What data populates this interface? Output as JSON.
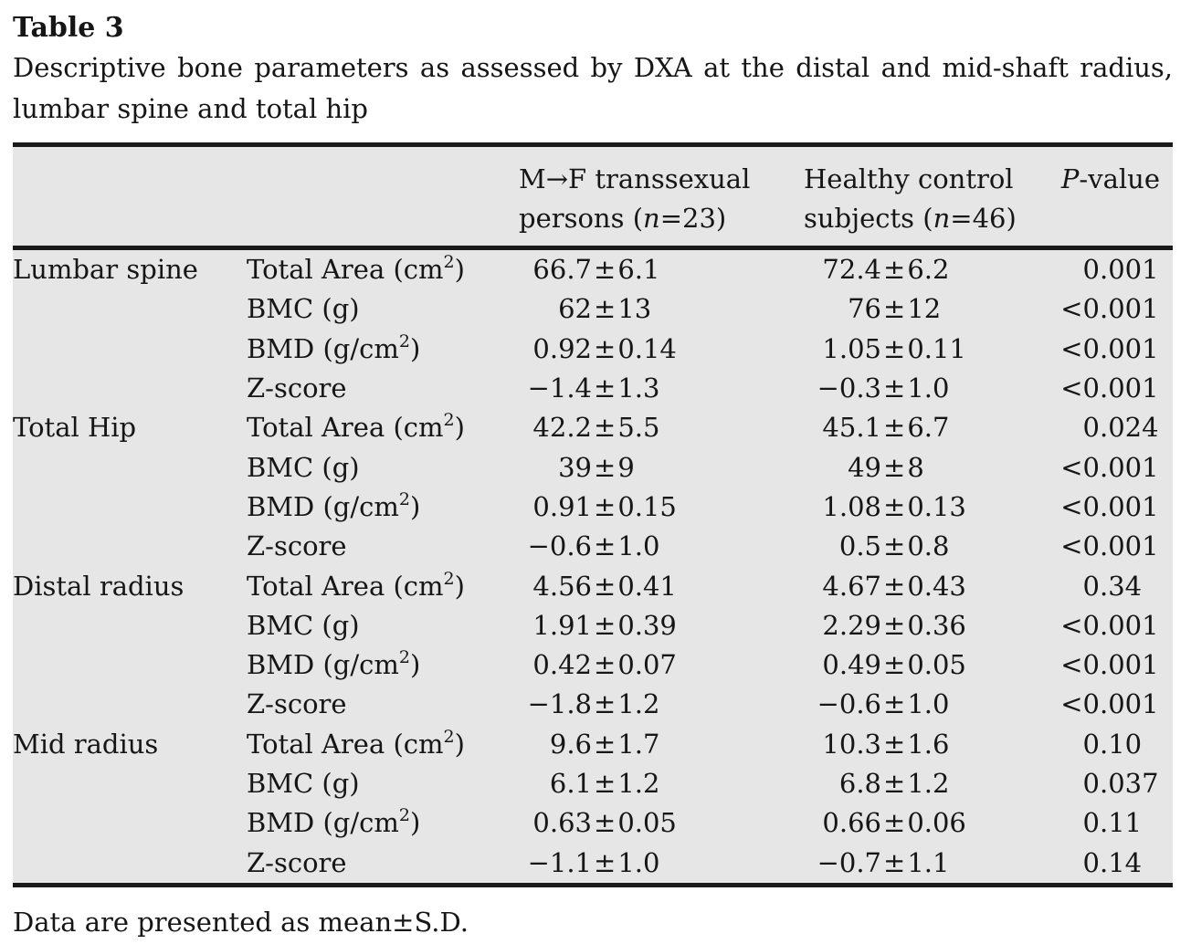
{
  "colors": {
    "page_background": "#ffffff",
    "table_background": "#e6e6e6",
    "text": "#161616",
    "rule": "#1a1a1a"
  },
  "title": "Table 3",
  "caption_line1": "Descriptive bone parameters as assessed by DXA at the distal and mid-shaft radius,",
  "caption_line2": "lumbar spine and total hip",
  "footnote": "Data are presented as mean±S.D.",
  "table": {
    "header": {
      "mf": {
        "line1": "M→F transsexual",
        "line2_pre": "persons (",
        "line2_var": "n",
        "line2_post": "=23)"
      },
      "hc": {
        "line1": "Healthy control",
        "line2_pre": "subjects (",
        "line2_var": "n",
        "line2_post": "=46)"
      },
      "p": {
        "var": "P",
        "rest": "-value"
      }
    },
    "sections": [
      {
        "site": "Lumbar spine",
        "rows": [
          {
            "param": [
              "Total Area (cm",
              "2",
              ")"
            ],
            "mf": "66.7±6.1",
            "hc": "72.4±6.2",
            "p": "0.001"
          },
          {
            "param": [
              "BMC (g)",
              "",
              ""
            ],
            "mf": "62±13",
            "hc": "76±12",
            "p": "<0.001"
          },
          {
            "param": [
              "BMD (g/cm",
              "2",
              ")"
            ],
            "mf": "0.92±0.14",
            "hc": "1.05±0.11",
            "p": "<0.001"
          },
          {
            "param": [
              "Z-score",
              "",
              ""
            ],
            "mf": "−1.4±1.3",
            "hc": "−0.3±1.0",
            "p": "<0.001"
          }
        ]
      },
      {
        "site": "Total Hip",
        "rows": [
          {
            "param": [
              "Total Area (cm",
              "2",
              ")"
            ],
            "mf": "42.2±5.5",
            "hc": "45.1±6.7",
            "p": "0.024"
          },
          {
            "param": [
              "BMC (g)",
              "",
              ""
            ],
            "mf": "39±9",
            "hc": "49±8",
            "p": "<0.001"
          },
          {
            "param": [
              "BMD (g/cm",
              "2",
              ")"
            ],
            "mf": "0.91±0.15",
            "hc": "1.08±0.13",
            "p": "<0.001"
          },
          {
            "param": [
              "Z-score",
              "",
              ""
            ],
            "mf": "−0.6±1.0",
            "hc": "0.5±0.8",
            "p": "<0.001"
          }
        ]
      },
      {
        "site": "Distal radius",
        "rows": [
          {
            "param": [
              "Total Area (cm",
              "2",
              ")"
            ],
            "mf": "4.56±0.41",
            "hc": "4.67±0.43",
            "p": "0.34"
          },
          {
            "param": [
              "BMC (g)",
              "",
              ""
            ],
            "mf": "1.91±0.39",
            "hc": "2.29±0.36",
            "p": "<0.001"
          },
          {
            "param": [
              "BMD (g/cm",
              "2",
              ")"
            ],
            "mf": "0.42±0.07",
            "hc": "0.49±0.05",
            "p": "<0.001"
          },
          {
            "param": [
              "Z-score",
              "",
              ""
            ],
            "mf": "−1.8±1.2",
            "hc": "−0.6±1.0",
            "p": "<0.001"
          }
        ]
      },
      {
        "site": "Mid radius",
        "rows": [
          {
            "param": [
              "Total Area (cm",
              "2",
              ")"
            ],
            "mf": "9.6±1.7",
            "hc": "10.3±1.6",
            "p": "0.10"
          },
          {
            "param": [
              "BMC (g)",
              "",
              ""
            ],
            "mf": "6.1±1.2",
            "hc": "6.8±1.2",
            "p": "0.037"
          },
          {
            "param": [
              "BMD (g/cm",
              "2",
              ")"
            ],
            "mf": "0.63±0.05",
            "hc": "0.66±0.06",
            "p": "0.11"
          },
          {
            "param": [
              "Z-score",
              "",
              ""
            ],
            "mf": "−1.1±1.0",
            "hc": "−0.7±1.1",
            "p": "0.14"
          }
        ]
      }
    ]
  }
}
